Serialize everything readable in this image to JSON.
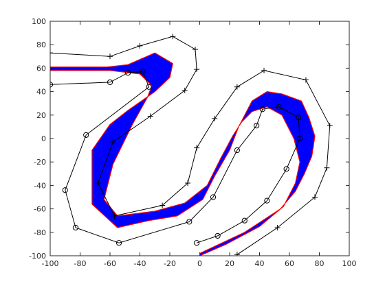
{
  "chart_data": {
    "type": "line",
    "title": "",
    "xlabel": "",
    "ylabel": "",
    "xlim": [
      -100,
      100
    ],
    "ylim": [
      -100,
      100
    ],
    "xticks": [
      -100,
      -80,
      -60,
      -40,
      -20,
      0,
      20,
      40,
      60,
      80,
      100
    ],
    "yticks": [
      -100,
      -80,
      -60,
      -40,
      -20,
      0,
      20,
      40,
      60,
      80,
      100
    ],
    "grid": false,
    "legend": "none",
    "colors": {
      "band": "#0000ff",
      "band_edge": "#ff0000",
      "boundary": "#000000"
    },
    "series": [
      {
        "marker": "plus",
        "x": [
          -100,
          -60,
          -40,
          -18,
          -3,
          -2,
          -10,
          -33,
          -58,
          -68,
          -57,
          -25,
          -8,
          -2,
          10,
          25,
          43,
          71,
          87,
          85,
          77,
          52,
          25
        ],
        "y": [
          73,
          70,
          79,
          87,
          76,
          59,
          41,
          19,
          -3,
          -38,
          -66,
          -57,
          -38,
          -8,
          17,
          44,
          58,
          50,
          11,
          -25,
          -50,
          -76,
          -99
        ]
      },
      {
        "marker": "circle",
        "x": [
          -100,
          -60,
          -48,
          -38,
          -34,
          -76,
          -90,
          -83,
          -54,
          -7,
          9,
          25,
          38,
          42,
          53,
          66,
          67,
          58,
          45,
          30,
          12,
          -2
        ],
        "y": [
          46,
          48,
          56,
          57,
          44,
          3,
          -44,
          -76,
          -89,
          -71,
          -50,
          -10,
          11,
          25,
          27,
          18,
          0,
          -26,
          -53,
          -70,
          -83,
          -89
        ]
      },
      {
        "marker": "none",
        "fill": "band",
        "x": [
          -100,
          -62,
          -48,
          -30,
          -18,
          -20,
          -30,
          -48,
          -60,
          -72,
          -72,
          -55,
          -34,
          -15,
          2,
          10,
          20,
          26,
          35,
          45,
          55,
          68,
          73,
          77,
          75,
          70,
          64,
          54,
          42,
          30,
          15,
          0,
          0,
          18,
          40,
          56,
          64,
          67,
          63,
          55,
          45,
          35,
          28,
          22,
          14,
          5,
          -10,
          -30,
          -55,
          -64,
          -58,
          -45,
          -35,
          -32,
          -40,
          -60,
          -100
        ],
        "y": [
          61,
          61,
          63,
          73,
          64,
          52,
          40,
          24,
          12,
          -10,
          -56,
          -76,
          -70,
          -66,
          -52,
          -32,
          -10,
          10,
          32,
          40,
          38,
          32,
          18,
          2,
          -15,
          -30,
          -45,
          -60,
          -70,
          -80,
          -89,
          -98,
          -100,
          -90,
          -75,
          -58,
          -38,
          -20,
          0,
          20,
          27,
          23,
          14,
          2,
          -17,
          -40,
          -55,
          -62,
          -66,
          -52,
          -22,
          12,
          35,
          45,
          55,
          58,
          58
        ]
      }
    ]
  }
}
